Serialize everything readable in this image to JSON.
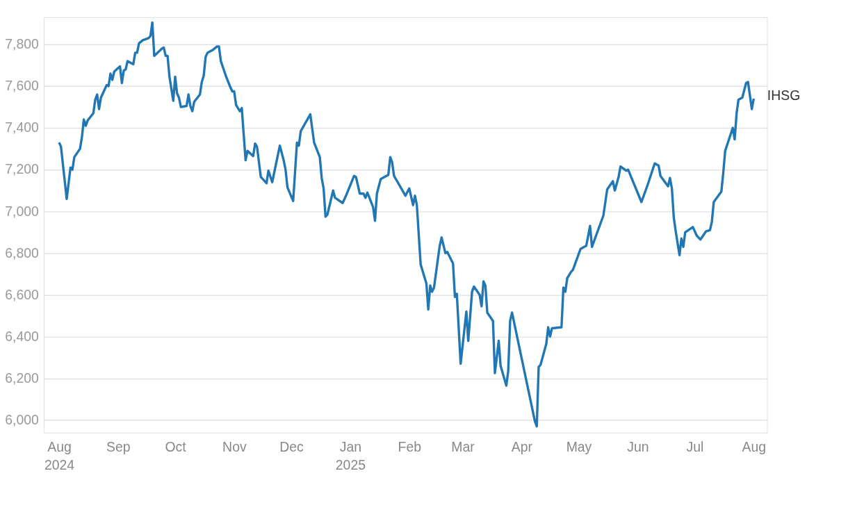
{
  "chart_data": {
    "type": "line",
    "x": [
      "2024-08-01",
      "2024-08-02",
      "2024-08-05",
      "2024-08-07",
      "2024-08-08",
      "2024-08-09",
      "2024-08-12",
      "2024-08-13",
      "2024-08-14",
      "2024-08-15",
      "2024-08-16",
      "2024-08-19",
      "2024-08-20",
      "2024-08-21",
      "2024-08-22",
      "2024-08-23",
      "2024-08-26",
      "2024-08-27",
      "2024-08-28",
      "2024-08-29",
      "2024-08-30",
      "2024-09-02",
      "2024-09-03",
      "2024-09-04",
      "2024-09-05",
      "2024-09-06",
      "2024-09-09",
      "2024-09-10",
      "2024-09-11",
      "2024-09-12",
      "2024-09-14",
      "2024-09-17",
      "2024-09-18",
      "2024-09-19",
      "2024-09-20",
      "2024-09-24",
      "2024-09-25",
      "2024-09-26",
      "2024-09-27",
      "2024-09-28",
      "2024-09-30",
      "2024-10-01",
      "2024-10-02",
      "2024-10-03",
      "2024-10-04",
      "2024-10-07",
      "2024-10-08",
      "2024-10-09",
      "2024-10-10",
      "2024-10-11",
      "2024-10-14",
      "2024-10-15",
      "2024-10-16",
      "2024-10-17",
      "2024-10-18",
      "2024-10-21",
      "2024-10-23",
      "2024-10-24",
      "2024-10-25",
      "2024-10-28",
      "2024-10-30",
      "2024-10-31",
      "2024-11-01",
      "2024-11-02",
      "2024-11-04",
      "2024-11-05",
      "2024-11-07",
      "2024-11-08",
      "2024-11-11",
      "2024-11-12",
      "2024-11-13",
      "2024-11-15",
      "2024-11-18",
      "2024-11-19",
      "2024-11-21",
      "2024-11-25",
      "2024-11-27",
      "2024-11-28",
      "2024-11-29",
      "2024-12-02",
      "2024-12-04",
      "2024-12-05",
      "2024-12-06",
      "2024-12-11",
      "2024-12-13",
      "2024-12-16",
      "2024-12-17",
      "2024-12-18",
      "2024-12-19",
      "2024-12-20",
      "2024-12-23",
      "2024-12-24",
      "2024-12-28",
      "2024-12-30",
      "2025-01-03",
      "2025-01-04",
      "2025-01-06",
      "2025-01-08",
      "2025-01-09",
      "2025-01-10",
      "2025-01-13",
      "2025-01-14",
      "2025-01-15",
      "2025-01-17",
      "2025-01-21",
      "2025-01-22",
      "2025-01-23",
      "2025-01-24",
      "2025-01-30",
      "2025-02-01",
      "2025-02-03",
      "2025-02-04",
      "2025-02-05",
      "2025-02-07",
      "2025-02-10",
      "2025-02-11",
      "2025-02-12",
      "2025-02-13",
      "2025-02-14",
      "2025-02-17",
      "2025-02-18",
      "2025-02-20",
      "2025-02-21",
      "2025-02-24",
      "2025-02-25",
      "2025-02-26",
      "2025-02-28",
      "2025-03-03",
      "2025-03-04",
      "2025-03-06",
      "2025-03-07",
      "2025-03-10",
      "2025-03-11",
      "2025-03-12",
      "2025-03-13",
      "2025-03-14",
      "2025-03-17",
      "2025-03-18",
      "2025-03-20",
      "2025-03-21",
      "2025-03-24",
      "2025-03-25",
      "2025-03-26",
      "2025-03-27",
      "2025-04-08",
      "2025-04-09",
      "2025-04-10",
      "2025-04-11",
      "2025-04-14",
      "2025-04-15",
      "2025-04-16",
      "2025-04-17",
      "2025-04-22",
      "2025-04-23",
      "2025-04-24",
      "2025-04-25",
      "2025-04-27",
      "2025-04-28",
      "2025-05-02",
      "2025-05-05",
      "2025-05-07",
      "2025-05-08",
      "2025-05-14",
      "2025-05-16",
      "2025-05-19",
      "2025-05-20",
      "2025-05-22",
      "2025-05-23",
      "2025-05-26",
      "2025-05-27",
      "2025-06-03",
      "2025-06-06",
      "2025-06-10",
      "2025-06-12",
      "2025-06-13",
      "2025-06-17",
      "2025-06-18",
      "2025-06-19",
      "2025-06-20",
      "2025-06-21",
      "2025-06-23",
      "2025-06-24",
      "2025-06-25",
      "2025-06-26",
      "2025-06-30",
      "2025-07-02",
      "2025-07-04",
      "2025-07-07",
      "2025-07-09",
      "2025-07-10",
      "2025-07-11",
      "2025-07-15",
      "2025-07-16",
      "2025-07-17",
      "2025-07-21",
      "2025-07-22",
      "2025-07-23",
      "2025-07-24",
      "2025-07-26",
      "2025-07-28",
      "2025-07-29",
      "2025-07-31",
      "2025-08-01"
    ],
    "series": [
      {
        "name": "IHSG",
        "color": "#2077b4",
        "values": [
          7330,
          7310,
          7060,
          7210,
          7200,
          7260,
          7300,
          7355,
          7440,
          7410,
          7435,
          7470,
          7535,
          7560,
          7490,
          7545,
          7605,
          7600,
          7660,
          7630,
          7670,
          7695,
          7615,
          7675,
          7680,
          7720,
          7705,
          7760,
          7760,
          7805,
          7820,
          7830,
          7840,
          7905,
          7745,
          7780,
          7785,
          7745,
          7745,
          7645,
          7530,
          7645,
          7565,
          7545,
          7500,
          7505,
          7560,
          7505,
          7480,
          7525,
          7560,
          7620,
          7650,
          7740,
          7760,
          7775,
          7790,
          7790,
          7720,
          7640,
          7595,
          7575,
          7575,
          7510,
          7480,
          7495,
          7245,
          7290,
          7265,
          7325,
          7310,
          7165,
          7135,
          7195,
          7140,
          7315,
          7245,
          7200,
          7115,
          7050,
          7330,
          7315,
          7385,
          7465,
          7330,
          7260,
          7160,
          7110,
          6975,
          6985,
          7100,
          7065,
          7040,
          7080,
          7170,
          7165,
          7085,
          7085,
          7065,
          7090,
          7020,
          6955,
          7085,
          7155,
          7175,
          7260,
          7235,
          7170,
          7075,
          7110,
          7030,
          7075,
          7030,
          6745,
          6655,
          6530,
          6645,
          6615,
          6635,
          6835,
          6875,
          6800,
          6805,
          6750,
          6590,
          6605,
          6270,
          6520,
          6380,
          6615,
          6640,
          6600,
          6545,
          6665,
          6645,
          6515,
          6475,
          6225,
          6380,
          6260,
          6165,
          6235,
          6475,
          6515,
          5995,
          5970,
          6255,
          6265,
          6365,
          6445,
          6400,
          6440,
          6445,
          6635,
          6615,
          6680,
          6710,
          6720,
          6820,
          6835,
          6930,
          6830,
          6980,
          7105,
          7145,
          7100,
          7165,
          7215,
          7195,
          7200,
          7045,
          7120,
          7230,
          7220,
          7170,
          7120,
          7160,
          7110,
          6970,
          6905,
          6790,
          6870,
          6830,
          6900,
          6925,
          6885,
          6865,
          6905,
          6910,
          6950,
          7045,
          7095,
          7185,
          7290,
          7400,
          7345,
          7470,
          7535,
          7545,
          7615,
          7620,
          7490,
          7540
        ]
      }
    ],
    "xlim": [
      "2024-07-24",
      "2025-08-08"
    ],
    "xticks": [
      {
        "value": "2024-08-01",
        "label": "Aug\n2024"
      },
      {
        "value": "2024-09-01",
        "label": "Sep"
      },
      {
        "value": "2024-10-01",
        "label": "Oct"
      },
      {
        "value": "2024-11-01",
        "label": "Nov"
      },
      {
        "value": "2024-12-01",
        "label": "Dec"
      },
      {
        "value": "2025-01-01",
        "label": "Jan\n2025"
      },
      {
        "value": "2025-02-01",
        "label": "Feb"
      },
      {
        "value": "2025-03-01",
        "label": "Mar"
      },
      {
        "value": "2025-04-01",
        "label": "Apr"
      },
      {
        "value": "2025-05-01",
        "label": "May"
      },
      {
        "value": "2025-06-01",
        "label": "Jun"
      },
      {
        "value": "2025-07-01",
        "label": "Jul"
      },
      {
        "value": "2025-08-01",
        "label": "Aug"
      }
    ],
    "ylim": [
      5940,
      7930
    ],
    "yticks": [
      {
        "value": 6000,
        "label": "6,000"
      },
      {
        "value": 6200,
        "label": "6,200"
      },
      {
        "value": 6400,
        "label": "6,400"
      },
      {
        "value": 6600,
        "label": "6,600"
      },
      {
        "value": 6800,
        "label": "6,800"
      },
      {
        "value": 7000,
        "label": "7,000"
      },
      {
        "value": 7200,
        "label": "7,200"
      },
      {
        "value": 7400,
        "label": "7,400"
      },
      {
        "value": 7600,
        "label": "7,600"
      },
      {
        "value": 7800,
        "label": "7,800"
      }
    ],
    "grid": "y",
    "marker": "none",
    "line_style": "solid"
  }
}
